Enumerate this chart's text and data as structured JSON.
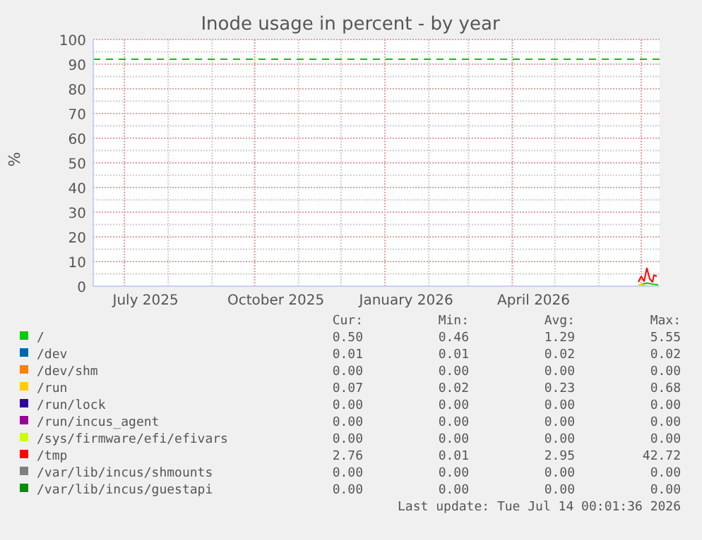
{
  "chart_data": {
    "type": "line",
    "title": "Inode usage in percent - by year",
    "ylabel": "%",
    "xlim": [
      "2025-06-09",
      "2026-07-14"
    ],
    "xticks": [
      {
        "value": "2025-07-16",
        "label": "July 2025"
      },
      {
        "value": "2025-10-16",
        "label": "October 2025"
      },
      {
        "value": "2026-01-16",
        "label": "January 2026"
      },
      {
        "value": "2026-04-16",
        "label": "April 2026"
      }
    ],
    "ylim": [
      0,
      100
    ],
    "yticks": [
      0,
      10,
      20,
      30,
      40,
      50,
      60,
      70,
      80,
      90,
      100
    ],
    "grid": true,
    "legend": "bottom",
    "ref_lines": [
      {
        "axis": "y",
        "value": 92,
        "color": "#00cc00",
        "line_style": "dashed"
      }
    ],
    "series": [
      {
        "name": "/",
        "color": "#00cc00",
        "x": [
          "2026-07-01",
          "2026-07-03",
          "2026-07-05",
          "2026-07-07",
          "2026-07-09",
          "2026-07-11",
          "2026-07-13"
        ],
        "values": [
          0.6,
          1,
          1.3,
          1.1,
          0.8,
          0.7,
          0.6
        ]
      },
      {
        "name": "/dev",
        "color": "#0066b3"
      },
      {
        "name": "/dev/shm",
        "color": "#ff8000"
      },
      {
        "name": "/run",
        "color": "#ffcc00",
        "x": [
          "2026-06-29",
          "2026-07-01",
          "2026-07-03",
          "2026-07-05",
          "2026-07-07"
        ],
        "values": [
          0.5,
          0.7,
          0.3,
          0.2,
          0.1
        ]
      },
      {
        "name": "/run/lock",
        "color": "#330099"
      },
      {
        "name": "/run/incus_agent",
        "color": "#990099"
      },
      {
        "name": "/sys/firmware/efi/efivars",
        "color": "#ccff00"
      },
      {
        "name": "/tmp",
        "color": "#ff0000",
        "x": [
          "2026-06-29",
          "2026-07-01",
          "2026-07-03",
          "2026-07-05",
          "2026-07-07",
          "2026-07-09",
          "2026-07-10",
          "2026-07-12"
        ],
        "values": [
          1.7,
          4,
          2,
          7.3,
          3,
          1.7,
          4.5,
          4
        ]
      },
      {
        "name": "/var/lib/incus/shmounts",
        "color": "#808080"
      },
      {
        "name": "/var/lib/incus/guestapi",
        "color": "#008f00"
      }
    ],
    "annotations": [
      "Cur: Min: Avg: Max:",
      "0.50 0.46 1.29 5.55",
      "0.01 0.01 0.02 0.02",
      "0.00 0.00 0.00 0.00",
      "0.07 0.02 0.23 0.68",
      "0.00 0.00 0.00 0.00",
      "0.00 0.00 0.00 0.00",
      "0.00 0.00 0.00 0.00",
      "2.76 0.01 2.95 42.72",
      "0.00 0.00 0.00 0.00",
      "0.00 0.00 0.00 0.00",
      "Last update: Tue Jul 14 00:01:36 2026"
    ]
  }
}
